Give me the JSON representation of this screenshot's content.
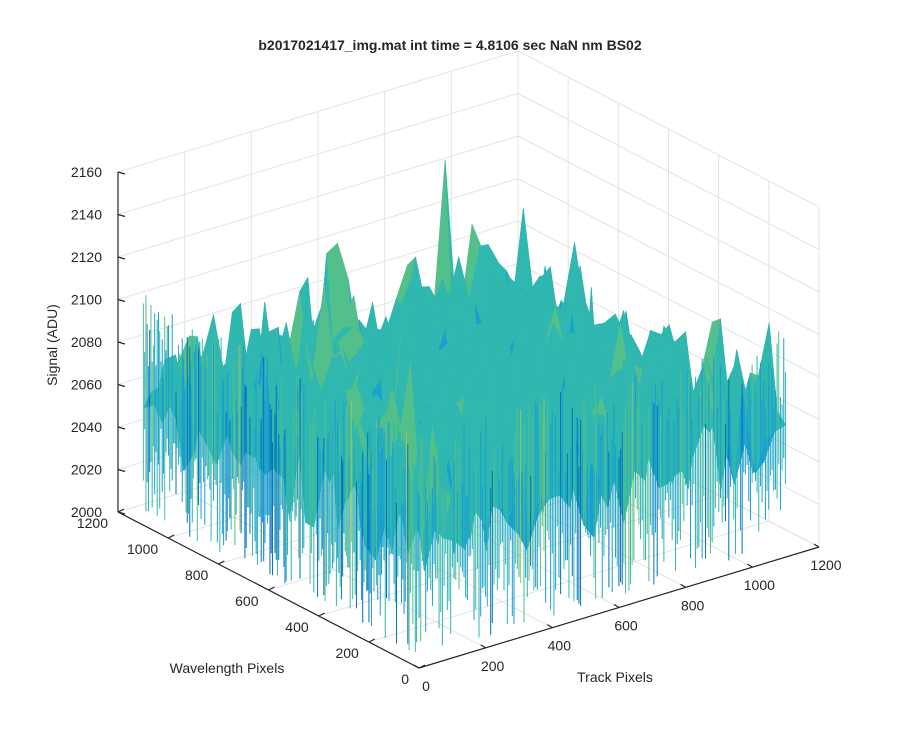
{
  "chart_data": {
    "type": "surface",
    "title": "b2017021417_img.mat int time = 4.8106 sec  NaN nm BS02",
    "xlabel": "Track Pixels",
    "ylabel": "Wavelength Pixels",
    "zlabel": "Signal (ADU)",
    "xlim": [
      0,
      1200
    ],
    "ylim": [
      0,
      1200
    ],
    "zlim": [
      2000,
      2160
    ],
    "xticks": [
      "0",
      "200",
      "400",
      "600",
      "800",
      "1000",
      "1200"
    ],
    "yticks": [
      "0",
      "200",
      "400",
      "600",
      "800",
      "1000",
      "1200"
    ],
    "zticks": [
      "2000",
      "2020",
      "2040",
      "2060",
      "2080",
      "2100",
      "2120",
      "2140",
      "2160"
    ],
    "grid": true,
    "colormap": [
      "#0072bd",
      "#1a9fd1",
      "#2fb7b0",
      "#53bf8a",
      "#9fc45a",
      "#d8c24a"
    ],
    "surface": {
      "x_range": [
        1,
        1100
      ],
      "y_range": [
        1,
        1100
      ],
      "mean_signal": 2065,
      "min_signal": 2010,
      "max_signal": 2150
    }
  }
}
